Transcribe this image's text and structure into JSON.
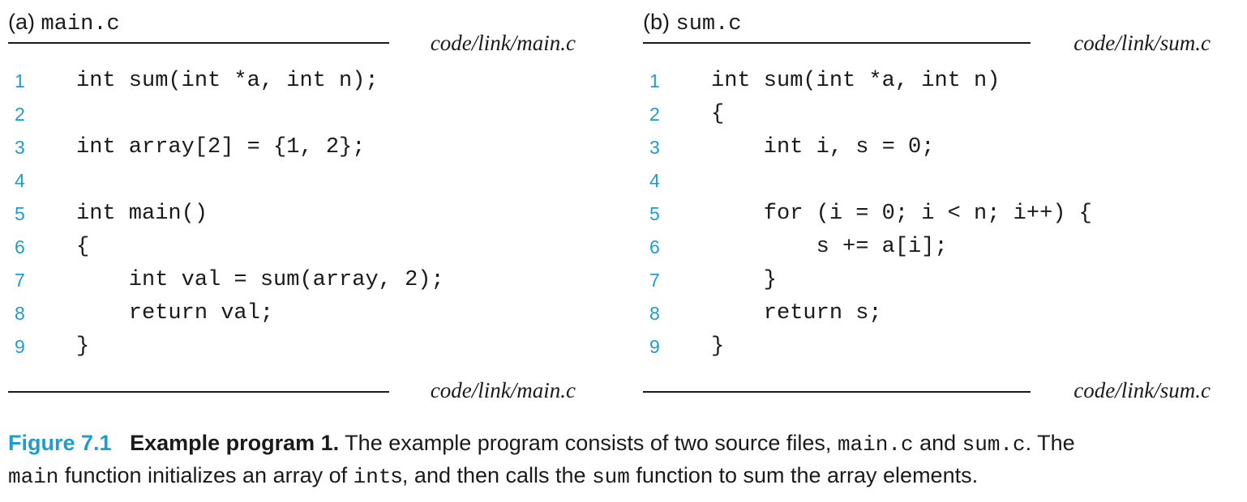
{
  "panels": [
    {
      "label": "(a)",
      "file": "main.c",
      "path_top": "code/link/main.c",
      "path_bottom": "code/link/main.c",
      "lines": [
        {
          "num": "1",
          "text": "int sum(int *a, int n);"
        },
        {
          "num": "2",
          "text": ""
        },
        {
          "num": "3",
          "text": "int array[2] = {1, 2};"
        },
        {
          "num": "4",
          "text": ""
        },
        {
          "num": "5",
          "text": "int main()"
        },
        {
          "num": "6",
          "text": "{"
        },
        {
          "num": "7",
          "text": "    int val = sum(array, 2);"
        },
        {
          "num": "8",
          "text": "    return val;"
        },
        {
          "num": "9",
          "text": "}"
        }
      ]
    },
    {
      "label": "(b)",
      "file": "sum.c",
      "path_top": "code/link/sum.c",
      "path_bottom": "code/link/sum.c",
      "lines": [
        {
          "num": "1",
          "text": "int sum(int *a, int n)"
        },
        {
          "num": "2",
          "text": "{"
        },
        {
          "num": "3",
          "text": "    int i, s = 0;"
        },
        {
          "num": "4",
          "text": ""
        },
        {
          "num": "5",
          "text": "    for (i = 0; i < n; i++) {"
        },
        {
          "num": "6",
          "text": "        s += a[i];"
        },
        {
          "num": "7",
          "text": "    }"
        },
        {
          "num": "8",
          "text": "    return s;"
        },
        {
          "num": "9",
          "text": "}"
        }
      ]
    }
  ],
  "caption": {
    "fig_num": "Figure 7.1",
    "fig_title": "Example program 1.",
    "text_1": " The example program consists of two source files, ",
    "code_1": "main.c",
    "text_2": " and ",
    "code_2": "sum.c",
    "text_3": ". The ",
    "code_3": "main",
    "text_4": " function initializes an array of ",
    "code_4": "int",
    "text_5": "s, and then calls the ",
    "code_5": "sum",
    "text_6": " function to sum the array elements.",
    "accent_color": "#1f9bd1"
  }
}
